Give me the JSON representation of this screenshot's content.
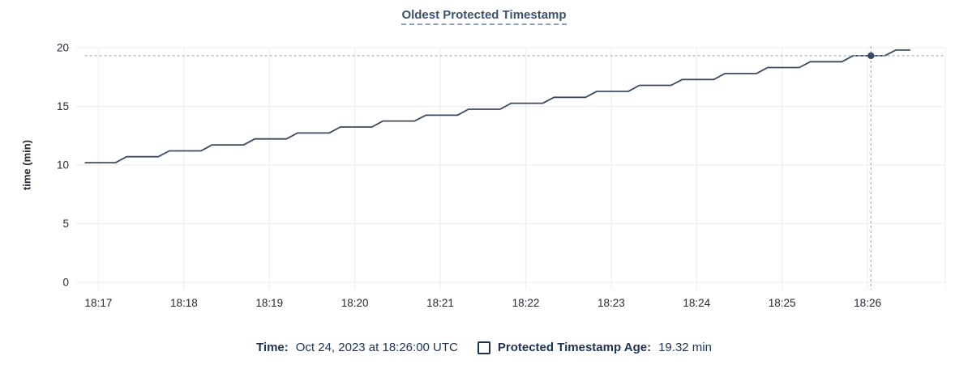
{
  "chart": {
    "title": "Oldest Protected Timestamp",
    "y_axis_label": "time (min)"
  },
  "chart_data": {
    "type": "line",
    "title": "Oldest Protected Timestamp",
    "xlabel": "",
    "ylabel": "time (min)",
    "ylim": [
      0,
      20
    ],
    "y_ticks": [
      0,
      5,
      10,
      15,
      20
    ],
    "x_tick_labels": [
      "18:17",
      "18:18",
      "18:19",
      "18:20",
      "18:21",
      "18:22",
      "18:23",
      "18:24",
      "18:25",
      "18:26"
    ],
    "x_tick_minutes": [
      0,
      1,
      2,
      3,
      4,
      5,
      6,
      7,
      8,
      9
    ],
    "xlim_minutes": [
      -0.27,
      9.91
    ],
    "grid": true,
    "legend_position": "bottom",
    "series": [
      {
        "name": "Protected Timestamp Age",
        "unit": "min",
        "points": [
          [
            -0.16,
            10.2
          ],
          [
            0.2,
            10.2
          ],
          [
            0.33,
            10.71
          ],
          [
            0.7,
            10.71
          ],
          [
            0.83,
            11.21
          ],
          [
            1.2,
            11.21
          ],
          [
            1.33,
            11.72
          ],
          [
            1.7,
            11.72
          ],
          [
            1.83,
            12.23
          ],
          [
            2.2,
            12.23
          ],
          [
            2.33,
            12.73
          ],
          [
            2.7,
            12.73
          ],
          [
            2.83,
            13.24
          ],
          [
            3.2,
            13.24
          ],
          [
            3.33,
            13.75
          ],
          [
            3.7,
            13.75
          ],
          [
            3.83,
            14.25
          ],
          [
            4.2,
            14.25
          ],
          [
            4.33,
            14.76
          ],
          [
            4.7,
            14.76
          ],
          [
            4.83,
            15.27
          ],
          [
            5.2,
            15.27
          ],
          [
            5.33,
            15.77
          ],
          [
            5.7,
            15.77
          ],
          [
            5.83,
            16.28
          ],
          [
            6.2,
            16.28
          ],
          [
            6.33,
            16.79
          ],
          [
            6.7,
            16.79
          ],
          [
            6.83,
            17.29
          ],
          [
            7.2,
            17.29
          ],
          [
            7.33,
            17.8
          ],
          [
            7.7,
            17.8
          ],
          [
            7.83,
            18.31
          ],
          [
            8.2,
            18.31
          ],
          [
            8.33,
            18.81
          ],
          [
            8.7,
            18.81
          ],
          [
            8.83,
            19.32
          ],
          [
            9.2,
            19.32
          ],
          [
            9.33,
            19.8
          ],
          [
            9.5,
            19.8
          ]
        ]
      }
    ],
    "hover": {
      "t_minutes": 9.04,
      "value": 19.32,
      "time_readout": "Oct 24, 2023 at 18:26:00 UTC"
    }
  },
  "footer": {
    "time_label": "Time:",
    "time_value": "Oct 24, 2023 at 18:26:00 UTC",
    "series_label": "Protected Timestamp Age:",
    "series_value": "19.32 min"
  },
  "colors": {
    "background": "#ffffff",
    "line": "#3b4a61",
    "marker": "#3b4a61",
    "title_text": "#3d516d",
    "grid": "#efefef",
    "crosshair": "#a6b6c8",
    "tick_text": "#242a35",
    "footer_text": "#1e3253"
  }
}
